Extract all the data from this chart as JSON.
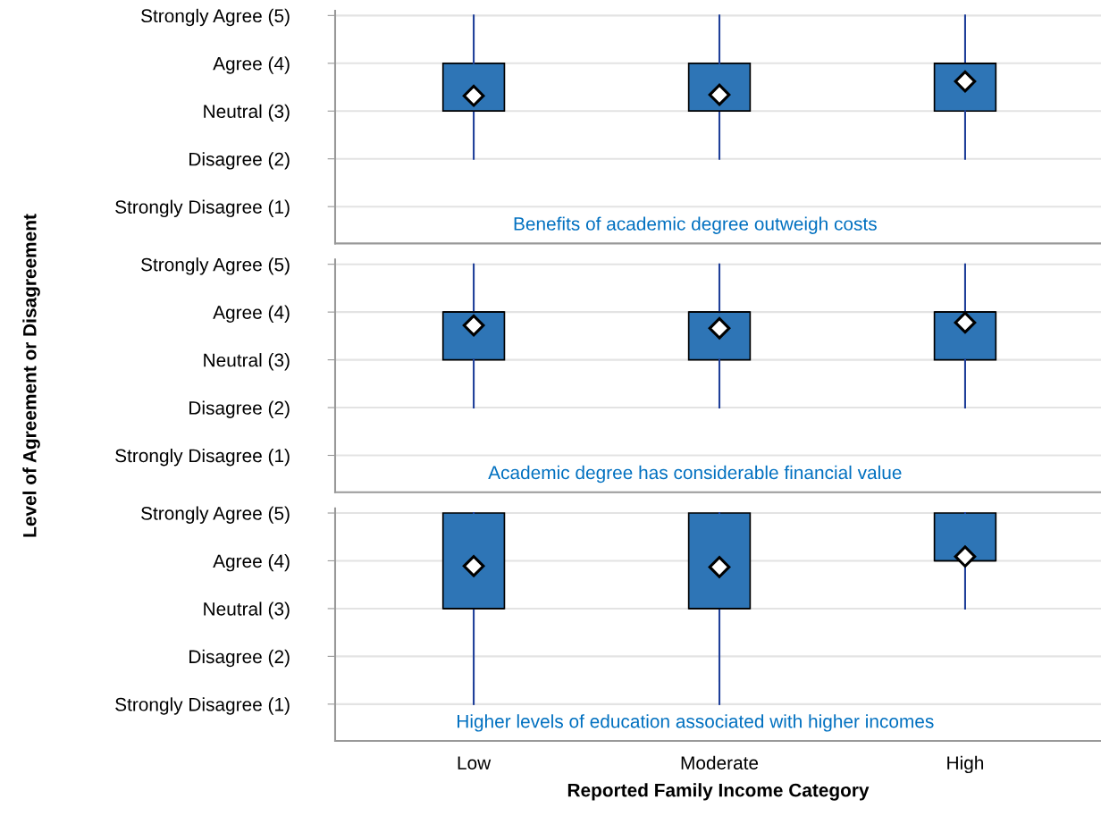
{
  "chart_data": [
    {
      "type": "box",
      "color": "#2e75b6",
      "annotations": [
        "Benefits of academic degree outweigh costs"
      ],
      "ylim": [
        0.23,
        5.1
      ],
      "yticks": [
        {
          "value": 1,
          "label": "Strongly Disagree (1)"
        },
        {
          "value": 2,
          "label": "Disagree (2)"
        },
        {
          "value": 3,
          "label": "Neutral (3)"
        },
        {
          "value": 4,
          "label": "Agree (4)"
        },
        {
          "value": 5,
          "label": "Strongly Agree (5)"
        }
      ],
      "grid": "y",
      "tick_labels": "y",
      "marker": "diamond",
      "boxes": [
        {
          "low": 2,
          "q1": 3,
          "median": 3,
          "q3": 4,
          "high": 5,
          "mean": 3.32
        },
        {
          "low": 2,
          "q1": 3,
          "median": 3,
          "q3": 4,
          "high": 5,
          "mean": 3.34
        },
        {
          "low": 2,
          "q1": 3,
          "median": 4,
          "q3": 4,
          "high": 5,
          "mean": 3.62
        }
      ]
    },
    {
      "type": "box",
      "color": "#2e75b6",
      "ylabel": "Level of Agreement or Disagreement",
      "annotations": [
        "Academic degree has considerable financial value"
      ],
      "ylim": [
        0.23,
        5.1
      ],
      "yticks": [
        {
          "value": 1,
          "label": "Strongly Disagree (1)"
        },
        {
          "value": 2,
          "label": "Disagree (2)"
        },
        {
          "value": 3,
          "label": "Neutral (3)"
        },
        {
          "value": 4,
          "label": "Agree (4)"
        },
        {
          "value": 5,
          "label": "Strongly Agree (5)"
        }
      ],
      "grid": "y",
      "tick_labels": "y",
      "marker": "diamond",
      "boxes": [
        {
          "low": 2,
          "q1": 3,
          "median": 4,
          "q3": 4,
          "high": 5,
          "mean": 3.72
        },
        {
          "low": 2,
          "q1": 3,
          "median": 4,
          "q3": 4,
          "high": 5,
          "mean": 3.66
        },
        {
          "low": 2,
          "q1": 3,
          "median": 4,
          "q3": 4,
          "high": 5,
          "mean": 3.78
        }
      ]
    },
    {
      "type": "box",
      "categories": [
        "Low",
        "Moderate",
        "High"
      ],
      "color": "#2e75b6",
      "xlabel": "Reported Family Income Category",
      "annotations": [
        "Higher levels of education associated with higher incomes"
      ],
      "ylim": [
        0.23,
        5.1
      ],
      "yticks": [
        {
          "value": 1,
          "label": "Strongly Disagree (1)"
        },
        {
          "value": 2,
          "label": "Disagree (2)"
        },
        {
          "value": 3,
          "label": "Neutral (3)"
        },
        {
          "value": 4,
          "label": "Agree (4)"
        },
        {
          "value": 5,
          "label": "Strongly Agree (5)"
        }
      ],
      "grid": "y",
      "marker": "diamond",
      "boxes": [
        {
          "low": 1,
          "q1": 3,
          "median": 3,
          "q3": 5,
          "high": 5,
          "mean": 3.89
        },
        {
          "low": 1,
          "q1": 3,
          "median": 3,
          "q3": 5,
          "high": 5,
          "mean": 3.87
        },
        {
          "low": 3,
          "q1": 4,
          "median": 4,
          "q3": 5,
          "high": 5,
          "mean": 4.09
        }
      ]
    }
  ]
}
